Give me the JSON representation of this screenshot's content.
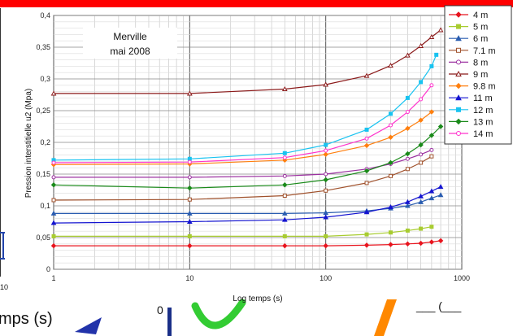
{
  "background": {
    "left_tick": "10",
    "bottom_label": "mps (s)",
    "bottom_glyph": "0",
    "right_glyph": "___ (___",
    "colors": {
      "top_bar": "#ff0000",
      "arrow": "#2233aa",
      "check": "#33cc33",
      "orange": "#ff8800"
    }
  },
  "chart_data": {
    "type": "line",
    "xscale": "log",
    "xlim": [
      1,
      1000
    ],
    "ylim": [
      0,
      0.4
    ],
    "xlabel": "Log temps (s)",
    "ylabel": "Pression interstitielle u2 (Mpa)",
    "annotation": [
      "Merville",
      "mai 2008"
    ],
    "xticks": [
      "1",
      "10",
      "100",
      "1000"
    ],
    "yticks": [
      "0",
      "0,05",
      "0,1",
      "0,15",
      "0,2",
      "0,25",
      "0,3",
      "0,35",
      "0,4"
    ],
    "grid": true,
    "legend_position": "right",
    "series": [
      {
        "name": "4 m",
        "color": "#e8141e",
        "marker": "diamond",
        "x": [
          1,
          10,
          50,
          100,
          200,
          300,
          400,
          500,
          600,
          700
        ],
        "y": [
          0.037,
          0.037,
          0.037,
          0.037,
          0.038,
          0.039,
          0.04,
          0.041,
          0.043,
          0.045
        ]
      },
      {
        "name": "5 m",
        "color": "#a8cc30",
        "marker": "square",
        "x": [
          1,
          10,
          50,
          100,
          200,
          300,
          400,
          500,
          600
        ],
        "y": [
          0.052,
          0.052,
          0.052,
          0.052,
          0.055,
          0.058,
          0.061,
          0.064,
          0.067
        ]
      },
      {
        "name": "6 m",
        "color": "#2a5db0",
        "marker": "triangle",
        "x": [
          1,
          10,
          50,
          100,
          200,
          300,
          400,
          500,
          600,
          700
        ],
        "y": [
          0.088,
          0.088,
          0.088,
          0.089,
          0.092,
          0.096,
          0.1,
          0.106,
          0.112,
          0.117
        ]
      },
      {
        "name": "7.1 m",
        "color": "#a0522d",
        "marker": "square-open",
        "x": [
          1,
          10,
          50,
          100,
          200,
          300,
          400,
          500,
          600
        ],
        "y": [
          0.109,
          0.11,
          0.116,
          0.124,
          0.136,
          0.147,
          0.158,
          0.168,
          0.178
        ]
      },
      {
        "name": "8 m",
        "color": "#9b30a0",
        "marker": "circle-open",
        "x": [
          1,
          10,
          50,
          100,
          200,
          300,
          400,
          500,
          600
        ],
        "y": [
          0.145,
          0.145,
          0.147,
          0.15,
          0.158,
          0.166,
          0.174,
          0.181,
          0.188
        ]
      },
      {
        "name": "9 m",
        "color": "#8b1a1a",
        "marker": "triangle-open",
        "x": [
          1,
          10,
          50,
          100,
          200,
          300,
          400,
          500,
          600,
          700
        ],
        "y": [
          0.277,
          0.277,
          0.284,
          0.291,
          0.305,
          0.321,
          0.337,
          0.352,
          0.366,
          0.377
        ]
      },
      {
        "name": "9.8 m",
        "color": "#ff7f0e",
        "marker": "diamond",
        "x": [
          1,
          10,
          50,
          100,
          200,
          300,
          400,
          500,
          600
        ],
        "y": [
          0.165,
          0.166,
          0.172,
          0.181,
          0.195,
          0.208,
          0.222,
          0.235,
          0.248
        ]
      },
      {
        "name": "11 m",
        "color": "#1414d0",
        "marker": "triangle",
        "x": [
          1,
          10,
          50,
          100,
          200,
          300,
          400,
          500,
          600,
          700
        ],
        "y": [
          0.073,
          0.075,
          0.078,
          0.082,
          0.09,
          0.098,
          0.106,
          0.115,
          0.123,
          0.13
        ]
      },
      {
        "name": "12 m",
        "color": "#19c3f0",
        "marker": "square",
        "x": [
          1,
          10,
          50,
          100,
          200,
          300,
          400,
          500,
          600,
          650
        ],
        "y": [
          0.172,
          0.174,
          0.183,
          0.196,
          0.22,
          0.245,
          0.27,
          0.295,
          0.32,
          0.338
        ]
      },
      {
        "name": "13 m",
        "color": "#1a8a1a",
        "marker": "diamond",
        "x": [
          1,
          10,
          50,
          100,
          200,
          300,
          400,
          500,
          600,
          700
        ],
        "y": [
          0.133,
          0.128,
          0.133,
          0.141,
          0.155,
          0.168,
          0.182,
          0.196,
          0.211,
          0.225
        ]
      },
      {
        "name": "14 m",
        "color": "#ff33cc",
        "marker": "circle-open",
        "x": [
          1,
          10,
          50,
          100,
          200,
          300,
          400,
          500,
          600
        ],
        "y": [
          0.168,
          0.169,
          0.176,
          0.187,
          0.206,
          0.227,
          0.248,
          0.268,
          0.29
        ]
      }
    ]
  }
}
